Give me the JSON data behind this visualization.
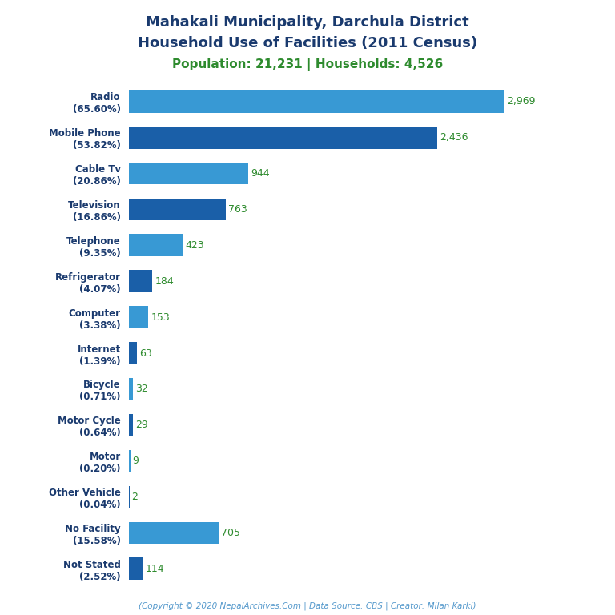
{
  "title_line1": "Mahakali Municipality, Darchula District",
  "title_line2": "Household Use of Facilities (2011 Census)",
  "subtitle": "Population: 21,231 | Households: 4,526",
  "footer": "(Copyright © 2020 NepalArchives.Com | Data Source: CBS | Creator: Milan Karki)",
  "categories": [
    "Radio\n(65.60%)",
    "Mobile Phone\n(53.82%)",
    "Cable Tv\n(20.86%)",
    "Television\n(16.86%)",
    "Telephone\n(9.35%)",
    "Refrigerator\n(4.07%)",
    "Computer\n(3.38%)",
    "Internet\n(1.39%)",
    "Bicycle\n(0.71%)",
    "Motor Cycle\n(0.64%)",
    "Motor\n(0.20%)",
    "Other Vehicle\n(0.04%)",
    "No Facility\n(15.58%)",
    "Not Stated\n(2.52%)"
  ],
  "values": [
    2969,
    2436,
    944,
    763,
    423,
    184,
    153,
    63,
    32,
    29,
    9,
    2,
    705,
    114
  ],
  "bar_colors": [
    "#3899d4",
    "#1a5fa8",
    "#3899d4",
    "#1a5fa8",
    "#3899d4",
    "#1a5fa8",
    "#3899d4",
    "#1a5fa8",
    "#3899d4",
    "#1a5fa8",
    "#3899d4",
    "#1a5fa8",
    "#3899d4",
    "#1a5fa8"
  ],
  "title_color": "#1a3a6e",
  "subtitle_color": "#2e8b2e",
  "value_color": "#2e8b2e",
  "footer_color": "#5599cc",
  "background_color": "#ffffff",
  "figsize": [
    7.68,
    7.68
  ],
  "dpi": 100
}
